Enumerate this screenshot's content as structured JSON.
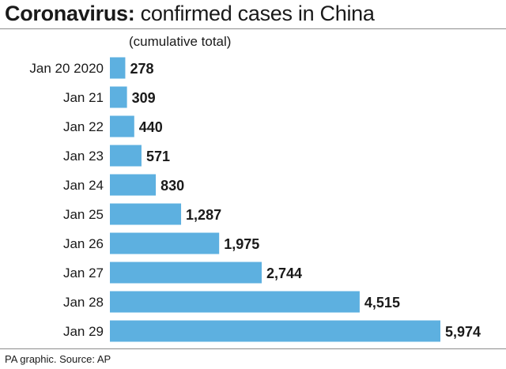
{
  "title_bold": "Coronavirus:",
  "title_rest": " confirmed cases in China",
  "subtitle": "(cumulative total)",
  "source": "PA graphic. Source: AP",
  "colors": {
    "bar": "#5db0e0",
    "text": "#1a1a1a",
    "rule": "#8c8c8c"
  },
  "chart_data": {
    "type": "bar",
    "orientation": "horizontal",
    "title": "Coronavirus: confirmed cases in China",
    "subtitle": "(cumulative total)",
    "categories": [
      "Jan 20 2020",
      "Jan 21",
      "Jan 22",
      "Jan 23",
      "Jan 24",
      "Jan 25",
      "Jan 26",
      "Jan 27",
      "Jan 28",
      "Jan 29"
    ],
    "values": [
      278,
      309,
      440,
      571,
      830,
      1287,
      1975,
      2744,
      4515,
      5974
    ],
    "value_labels": [
      "278",
      "309",
      "440",
      "571",
      "830",
      "1,287",
      "1,975",
      "2,744",
      "4,515",
      "5,974"
    ],
    "xlim": [
      0,
      5974
    ],
    "grid": false,
    "legend": "none"
  }
}
